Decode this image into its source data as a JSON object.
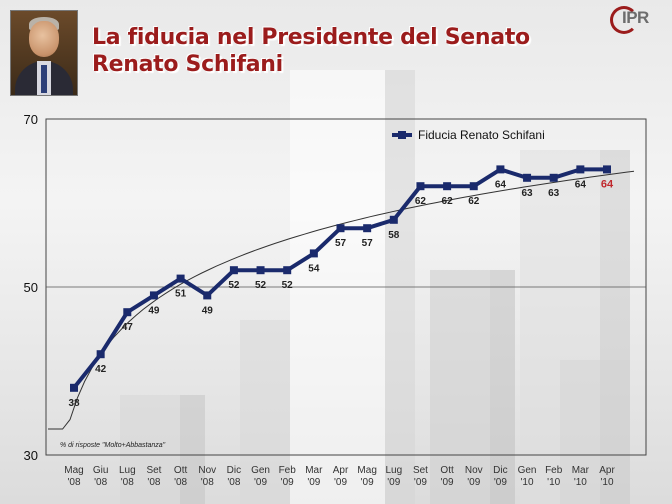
{
  "title": {
    "line1": "La fiducia nel Presidente del Senato",
    "line2": "Renato Schifani"
  },
  "logo": {
    "text": "IPR",
    "icon": "ipr-logo"
  },
  "photo": {
    "icon": "portrait-photo"
  },
  "note": "% di risposte \"Molto+Abbastanza\"",
  "chart_data": {
    "type": "line",
    "title": "",
    "xlabel": "",
    "ylabel": "",
    "ylim": [
      30,
      70
    ],
    "yticks": [
      30,
      50,
      70
    ],
    "grid": "horizontal at 50",
    "legend": "top-right",
    "categories": [
      [
        "Mag",
        "'08"
      ],
      [
        "Giu",
        "'08"
      ],
      [
        "Lug",
        "'08"
      ],
      [
        "Set",
        "'08"
      ],
      [
        "Ott",
        "'08"
      ],
      [
        "Nov",
        "'08"
      ],
      [
        "Dic",
        "'08"
      ],
      [
        "Gen",
        "'09"
      ],
      [
        "Feb",
        "'09"
      ],
      [
        "Mar",
        "'09"
      ],
      [
        "Apr",
        "'09"
      ],
      [
        "Mag",
        "'09"
      ],
      [
        "Lug",
        "'09"
      ],
      [
        "Set",
        "'09"
      ],
      [
        "Ott",
        "'09"
      ],
      [
        "Nov",
        "'09"
      ],
      [
        "Dic",
        "'09"
      ],
      [
        "Gen",
        "'10"
      ],
      [
        "Feb",
        "'10"
      ],
      [
        "Mar",
        "'10"
      ],
      [
        "Apr",
        "'10"
      ]
    ],
    "series": [
      {
        "name": "Fiducia Renato Schifani",
        "color": "#1a2a6c",
        "values": [
          38,
          42,
          47,
          49,
          51,
          49,
          52,
          52,
          52,
          54,
          57,
          57,
          58,
          62,
          62,
          62,
          64,
          63,
          63,
          64,
          64
        ],
        "labels": [
          "38",
          "42",
          "47",
          "49",
          "51",
          "49",
          "52",
          "52",
          "52",
          "54",
          "57",
          "57",
          "58",
          "62",
          "62",
          "62",
          "64",
          "63",
          "63",
          "64",
          "64"
        ]
      }
    ],
    "trendline": {
      "type": "logarithmic",
      "color": "#333333"
    },
    "highlight_last_label_color": "#c0282d"
  }
}
